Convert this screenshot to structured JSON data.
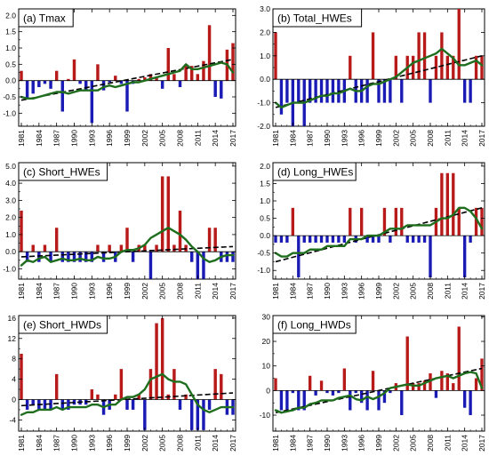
{
  "chart_data": [
    {
      "type": "bar",
      "title": "(a) Tmax",
      "x": [
        1981,
        1982,
        1983,
        1984,
        1985,
        1986,
        1987,
        1988,
        1989,
        1990,
        1991,
        1992,
        1993,
        1994,
        1995,
        1996,
        1997,
        1998,
        1999,
        2000,
        2001,
        2002,
        2003,
        2004,
        2005,
        2006,
        2007,
        2008,
        2009,
        2010,
        2011,
        2012,
        2013,
        2014,
        2015,
        2016,
        2017
      ],
      "values": [
        0.3,
        -0.55,
        -0.4,
        -0.2,
        -0.1,
        -0.25,
        0.3,
        -0.95,
        0.05,
        0.65,
        -0.1,
        -0.3,
        -1.3,
        0.5,
        -0.3,
        -0.05,
        0.15,
        -0.1,
        -0.95,
        -0.1,
        0.05,
        0.1,
        0.2,
        0.1,
        -0.25,
        1.0,
        0.2,
        -0.2,
        0.5,
        0.45,
        0.2,
        0.6,
        1.7,
        -0.5,
        -0.55,
        0.95,
        1.15
      ],
      "smooth": [
        -0.5,
        -0.55,
        -0.55,
        -0.5,
        -0.45,
        -0.4,
        -0.35,
        -0.35,
        -0.4,
        -0.35,
        -0.3,
        -0.3,
        -0.3,
        -0.3,
        -0.2,
        -0.15,
        -0.2,
        -0.15,
        -0.1,
        -0.05,
        -0.05,
        0.0,
        0.05,
        0.1,
        0.15,
        0.2,
        0.25,
        0.3,
        0.5,
        0.35,
        0.35,
        0.4,
        0.45,
        0.5,
        0.55,
        0.5,
        0.25
      ],
      "trend": [
        -0.6,
        0.65
      ],
      "xticks": [
        "1981",
        "1984",
        "1987",
        "1990",
        "1993",
        "1996",
        "1999",
        "2002",
        "2005",
        "2008",
        "2011",
        "2014",
        "2017"
      ],
      "yticks": [
        "-1.0",
        "-0.5",
        "0.0",
        "0.5",
        "1.0",
        "1.5",
        "2.0"
      ],
      "ylim": [
        -1.4,
        2.2
      ],
      "colors": {
        "positive": "#b81a1a",
        "negative": "#1a1ab4",
        "smooth": "#1e6e1e",
        "trend": "#000000"
      }
    },
    {
      "type": "bar",
      "title": "(b) Total_HWEs",
      "x": [
        1981,
        1982,
        1983,
        1984,
        1985,
        1986,
        1987,
        1988,
        1989,
        1990,
        1991,
        1992,
        1993,
        1994,
        1995,
        1996,
        1997,
        1998,
        1999,
        2000,
        2001,
        2002,
        2003,
        2004,
        2005,
        2006,
        2007,
        2008,
        2009,
        2010,
        2011,
        2012,
        2013,
        2014,
        2015,
        2016,
        2017
      ],
      "values": [
        2.0,
        -1.5,
        -1.0,
        -2.0,
        -1.0,
        -2.0,
        -1.0,
        -1.0,
        -1.0,
        -1.0,
        -1.0,
        -1.0,
        -1.0,
        1.0,
        -1.0,
        -1.0,
        -1.0,
        2.0,
        -1.0,
        -1.0,
        -1.0,
        1.0,
        -1.0,
        1.0,
        1.0,
        2.0,
        2.0,
        -1.0,
        1.0,
        2.0,
        1.0,
        1.0,
        3.0,
        -1.0,
        -1.0,
        1.0,
        1.0
      ],
      "smooth": [
        -1.0,
        -1.2,
        -1.1,
        -1.0,
        -1.0,
        -1.0,
        -0.9,
        -0.8,
        -0.7,
        -0.7,
        -0.6,
        -0.6,
        -0.5,
        -0.4,
        -0.5,
        -0.5,
        -0.3,
        -0.2,
        -0.2,
        -0.1,
        0.0,
        0.1,
        0.3,
        0.5,
        0.7,
        0.8,
        0.9,
        1.0,
        1.1,
        1.3,
        1.1,
        0.9,
        0.6,
        0.6,
        0.7,
        0.8,
        0.6
      ],
      "trend": [
        -1.2,
        1.0
      ],
      "xticks": [
        "1981",
        "1984",
        "1987",
        "1990",
        "1993",
        "1996",
        "1999",
        "2002",
        "2005",
        "2008",
        "2011",
        "2014",
        "2017"
      ],
      "yticks": [
        "-2.0",
        "-1.0",
        "0.0",
        "1.0",
        "2.0",
        "3.0"
      ],
      "ylim": [
        -2.0,
        3.0
      ],
      "colors": {
        "positive": "#b81a1a",
        "negative": "#1a1ab4",
        "smooth": "#1e6e1e",
        "trend": "#000000"
      }
    },
    {
      "type": "bar",
      "title": "(c) Short_HWEs",
      "x": [
        1981,
        1982,
        1983,
        1984,
        1985,
        1986,
        1987,
        1988,
        1989,
        1990,
        1991,
        1992,
        1993,
        1994,
        1995,
        1996,
        1997,
        1998,
        1999,
        2000,
        2001,
        2002,
        2003,
        2004,
        2005,
        2006,
        2007,
        2008,
        2009,
        2010,
        2011,
        2012,
        2013,
        2014,
        2015,
        2016,
        2017
      ],
      "values": [
        2.4,
        -0.6,
        0.4,
        -0.6,
        0.4,
        -0.6,
        1.4,
        -0.6,
        -0.6,
        -0.6,
        -0.6,
        -0.6,
        -0.6,
        0.4,
        -0.6,
        0.4,
        -0.6,
        0.4,
        1.4,
        -0.6,
        0.4,
        0.4,
        -1.6,
        0.4,
        4.4,
        4.4,
        0.4,
        2.4,
        0.4,
        -0.6,
        -1.6,
        -1.6,
        1.4,
        1.4,
        -0.6,
        -0.6,
        -0.6
      ],
      "smooth": [
        -0.8,
        -0.5,
        -0.6,
        -0.4,
        -0.3,
        -0.6,
        -0.5,
        -0.4,
        -0.5,
        -0.5,
        -0.4,
        -0.5,
        -0.5,
        -0.3,
        -0.4,
        -0.4,
        -0.3,
        0.0,
        0.1,
        0.1,
        0.2,
        0.4,
        0.8,
        1.0,
        1.2,
        1.4,
        1.2,
        1.0,
        0.7,
        0.3,
        0.0,
        -0.4,
        -0.6,
        -0.5,
        -0.3,
        -0.2,
        -0.2
      ],
      "trend": [
        -0.3,
        0.3
      ],
      "xticks": [
        "1981",
        "1984",
        "1987",
        "1990",
        "1993",
        "1996",
        "1999",
        "2002",
        "2005",
        "2008",
        "2011",
        "2014",
        "2017"
      ],
      "yticks": [
        "-1.0",
        "0.0",
        "1.0",
        "2.0",
        "3.0",
        "4.0",
        "5.0"
      ],
      "ylim": [
        -1.6,
        5.2
      ],
      "colors": {
        "positive": "#b81a1a",
        "negative": "#1a1ab4",
        "smooth": "#1e6e1e",
        "trend": "#000000"
      }
    },
    {
      "type": "bar",
      "title": "(d) Long_HWEs",
      "x": [
        1981,
        1982,
        1983,
        1984,
        1985,
        1986,
        1987,
        1988,
        1989,
        1990,
        1991,
        1992,
        1993,
        1994,
        1995,
        1996,
        1997,
        1998,
        1999,
        2000,
        2001,
        2002,
        2003,
        2004,
        2005,
        2006,
        2007,
        2008,
        2009,
        2010,
        2011,
        2012,
        2013,
        2014,
        2015,
        2016,
        2017
      ],
      "values": [
        -0.2,
        -0.2,
        -0.2,
        0.8,
        -1.2,
        -0.2,
        -0.2,
        -0.2,
        -0.2,
        -0.2,
        -0.2,
        -0.2,
        -0.2,
        0.8,
        -0.2,
        0.8,
        -0.2,
        -0.2,
        -0.2,
        0.8,
        -0.2,
        0.8,
        0.8,
        -0.2,
        -0.2,
        -0.2,
        -0.2,
        -1.2,
        0.8,
        1.8,
        1.8,
        1.8,
        0.8,
        -1.2,
        -0.2,
        0.8,
        0.8
      ],
      "smooth": [
        -0.5,
        -0.6,
        -0.6,
        -0.5,
        -0.5,
        -0.5,
        -0.4,
        -0.4,
        -0.4,
        -0.3,
        -0.3,
        -0.3,
        -0.3,
        -0.1,
        -0.1,
        -0.1,
        0.0,
        0.0,
        0.0,
        0.1,
        0.2,
        0.2,
        0.2,
        0.3,
        0.3,
        0.3,
        0.3,
        0.3,
        0.4,
        0.5,
        0.5,
        0.6,
        0.8,
        0.8,
        0.7,
        0.5,
        0.2
      ],
      "trend": [
        -0.75,
        0.8
      ],
      "xticks": [
        "1981",
        "1984",
        "1987",
        "1990",
        "1993",
        "1996",
        "1999",
        "2002",
        "2005",
        "2008",
        "2011",
        "2014",
        "2017"
      ],
      "yticks": [
        "-1.0",
        "-0.5",
        "0.0",
        "0.5",
        "1.0",
        "1.5",
        "2.0"
      ],
      "ylim": [
        -1.25,
        2.1
      ],
      "colors": {
        "positive": "#b81a1a",
        "negative": "#1a1ab4",
        "smooth": "#1e6e1e",
        "trend": "#000000"
      }
    },
    {
      "type": "bar",
      "title": "(e) Short_HWDs",
      "x": [
        1981,
        1982,
        1983,
        1984,
        1985,
        1986,
        1987,
        1988,
        1989,
        1990,
        1991,
        1992,
        1993,
        1994,
        1995,
        1996,
        1997,
        1998,
        1999,
        2000,
        2001,
        2002,
        2003,
        2004,
        2005,
        2006,
        2007,
        2008,
        2009,
        2010,
        2011,
        2012,
        2013,
        2014,
        2015,
        2016,
        2017
      ],
      "values": [
        9.0,
        -2.0,
        -1.0,
        -2.0,
        -2.0,
        -2.0,
        5.0,
        -2.0,
        -2.0,
        -1.0,
        -1.0,
        -1.0,
        2.0,
        1.0,
        -3.0,
        -2.0,
        1.0,
        6.0,
        -2.0,
        -2.0,
        1.0,
        -6.0,
        6.0,
        15.0,
        16.0,
        1.0,
        6.0,
        -2.0,
        1.0,
        -6.0,
        -6.0,
        -6.0,
        -2.0,
        6.0,
        5.0,
        -3.0,
        -3.0
      ],
      "smooth": [
        -3.0,
        -2.5,
        -2.5,
        -2.0,
        -2.0,
        -2.0,
        -1.5,
        -2.0,
        -1.5,
        -1.5,
        -1.5,
        -1.5,
        -1.0,
        -1.0,
        -1.5,
        -1.0,
        -1.0,
        0.0,
        0.5,
        0.5,
        1.0,
        2.0,
        4.0,
        4.5,
        5.0,
        4.0,
        3.5,
        3.5,
        3.0,
        1.0,
        -1.0,
        -2.0,
        -2.5,
        -2.0,
        -1.5,
        -1.5,
        -1.5
      ],
      "trend": [
        -1.2,
        1.3
      ],
      "xticks": [
        "1981",
        "1984",
        "1987",
        "1990",
        "1993",
        "1996",
        "1999",
        "2002",
        "2005",
        "2008",
        "2011",
        "2014",
        "2017"
      ],
      "yticks": [
        "-4",
        "0",
        "4",
        "8",
        "12",
        "16"
      ],
      "ylim": [
        -6.2,
        16.5
      ],
      "colors": {
        "positive": "#b81a1a",
        "negative": "#1a1ab4",
        "smooth": "#1e6e1e",
        "trend": "#000000"
      }
    },
    {
      "type": "bar",
      "title": "(f) Long_HWDs",
      "x": [
        1981,
        1982,
        1983,
        1984,
        1985,
        1986,
        1987,
        1988,
        1989,
        1990,
        1991,
        1992,
        1993,
        1994,
        1995,
        1996,
        1997,
        1998,
        1999,
        2000,
        2001,
        2002,
        2003,
        2004,
        2005,
        2006,
        2007,
        2008,
        2009,
        2010,
        2011,
        2012,
        2013,
        2014,
        2015,
        2016,
        2017
      ],
      "values": [
        5.0,
        -8.0,
        -8.0,
        -1.0,
        -8.0,
        -8.0,
        6.0,
        -2.0,
        4.0,
        -1.0,
        -2.0,
        -1.0,
        9.0,
        -8.0,
        -1.0,
        -5.0,
        -8.0,
        8.0,
        -8.0,
        -5.0,
        -1.0,
        3.0,
        -10.0,
        22.0,
        3.0,
        3.0,
        4.0,
        7.0,
        -3.0,
        8.0,
        7.0,
        3.0,
        26.0,
        -7.0,
        -10.0,
        5.0,
        13.0
      ],
      "smooth": [
        -8.0,
        -9.0,
        -8.5,
        -8.0,
        -7.0,
        -7.0,
        -5.5,
        -5.0,
        -4.0,
        -4.0,
        -4.0,
        -3.0,
        -2.5,
        -2.0,
        -3.5,
        -4.0,
        -2.5,
        -3.5,
        -2.5,
        -1.0,
        1.0,
        1.5,
        2.0,
        2.5,
        2.0,
        2.0,
        3.0,
        4.0,
        5.0,
        5.5,
        6.0,
        5.0,
        6.0,
        7.0,
        7.5,
        7.0,
        1.0
      ],
      "trend": [
        -9.0,
        9.0
      ],
      "xticks": [
        "1981",
        "1984",
        "1987",
        "1990",
        "1993",
        "1996",
        "1999",
        "2002",
        "2005",
        "2008",
        "2011",
        "2014",
        "2017"
      ],
      "yticks": [
        "-10",
        "0",
        "10",
        "20",
        "30"
      ],
      "ylim": [
        -16.5,
        30.5
      ],
      "colors": {
        "positive": "#b81a1a",
        "negative": "#1a1ab4",
        "smooth": "#1e6e1e",
        "trend": "#000000"
      }
    }
  ]
}
